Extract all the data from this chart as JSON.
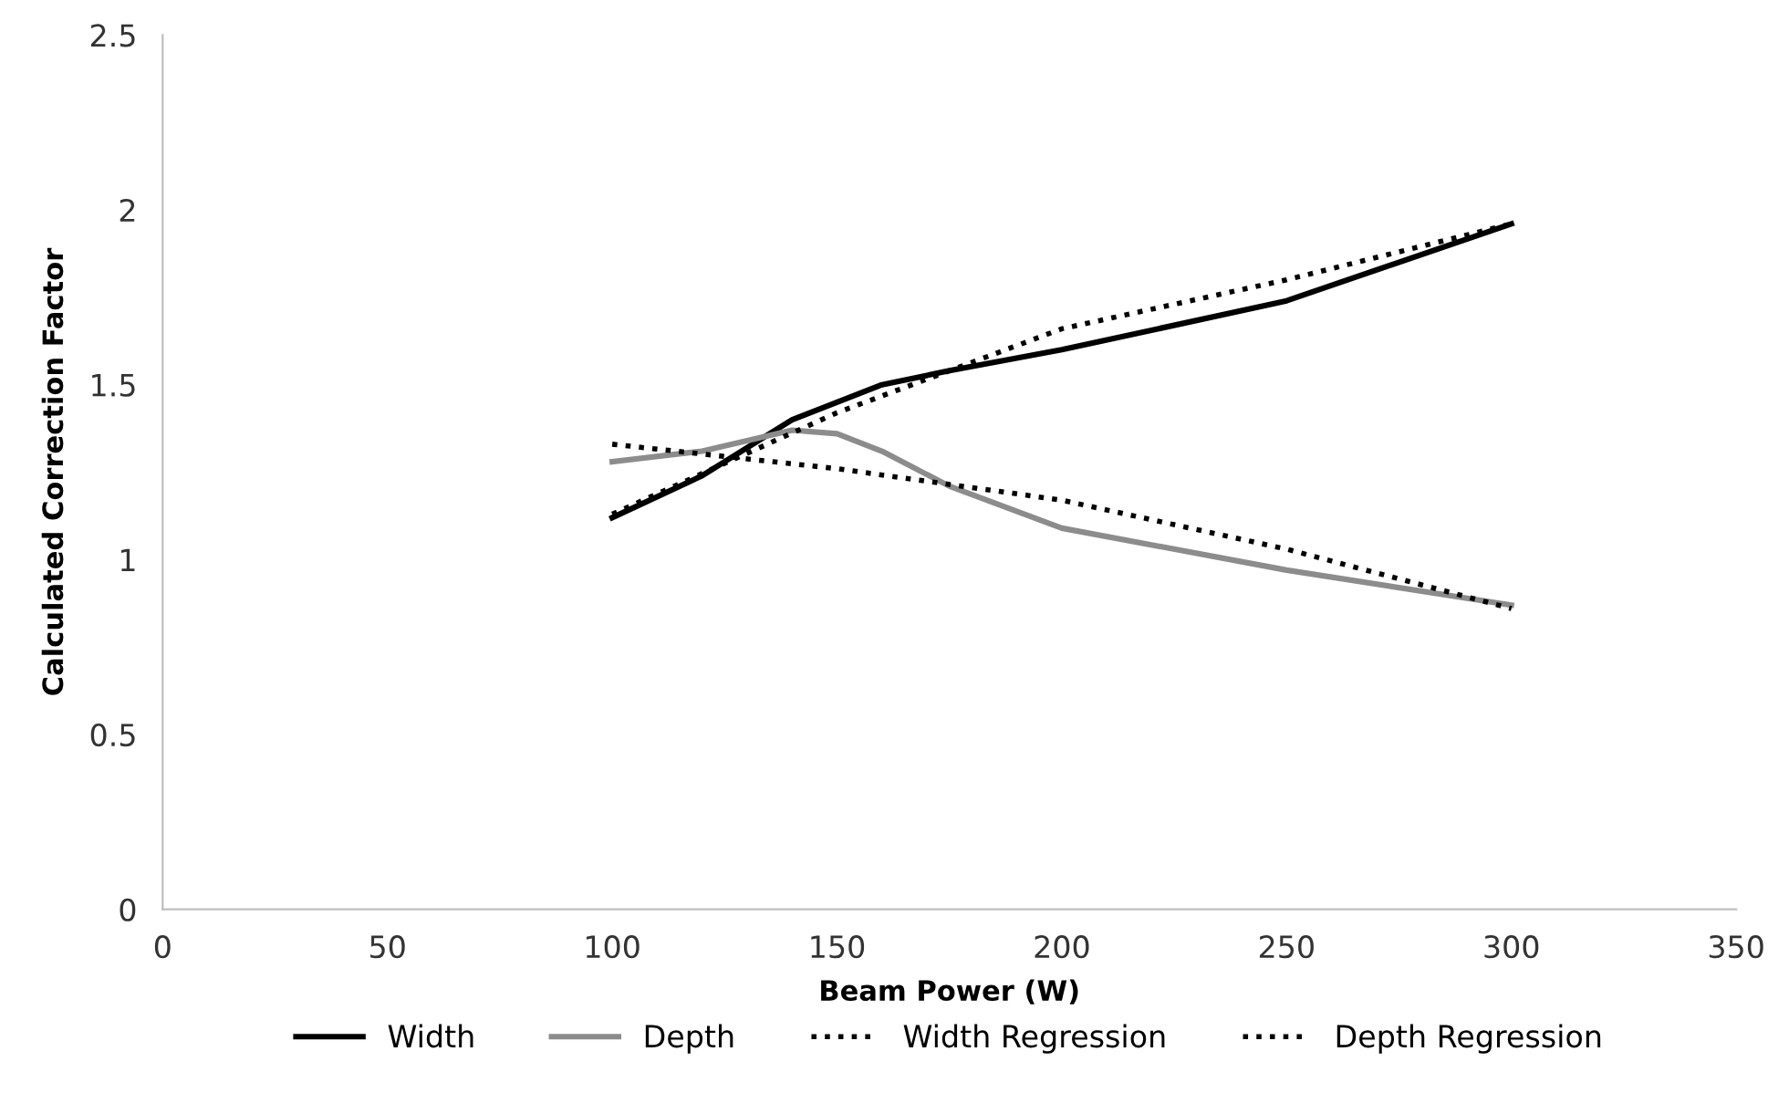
{
  "chart_data": {
    "type": "line",
    "xlabel": "Beam Power (W)",
    "ylabel": "Calculated Correction Factor",
    "xlim": [
      0,
      350
    ],
    "xticks": [
      0,
      50,
      100,
      150,
      200,
      250,
      300,
      350
    ],
    "ylim": [
      0,
      2.5
    ],
    "yticks": [
      0,
      0.5,
      1,
      1.5,
      2,
      2.5
    ],
    "grid": false,
    "legend": "bottom",
    "marker": "none",
    "series": [
      {
        "name": "Width",
        "color": "#000000",
        "line_style": "solid",
        "x": [
          100,
          120,
          140,
          150,
          160,
          175,
          200,
          250,
          300
        ],
        "values": [
          1.12,
          1.24,
          1.4,
          1.45,
          1.5,
          1.54,
          1.6,
          1.74,
          1.96
        ]
      },
      {
        "name": "Depth",
        "color": "#8c8c8c",
        "line_style": "solid",
        "x": [
          100,
          120,
          140,
          150,
          160,
          175,
          200,
          250,
          300
        ],
        "values": [
          1.28,
          1.31,
          1.37,
          1.36,
          1.31,
          1.21,
          1.09,
          0.97,
          0.87
        ]
      },
      {
        "name": "Width Regression",
        "color": "#000000",
        "line_style": "dotted",
        "x": [
          100,
          150,
          200,
          250,
          300
        ],
        "values": [
          1.13,
          1.42,
          1.66,
          1.8,
          1.96
        ]
      },
      {
        "name": "Depth Regression",
        "color": "#000000",
        "line_style": "dotted",
        "x": [
          100,
          150,
          200,
          250,
          300
        ],
        "values": [
          1.33,
          1.26,
          1.17,
          1.03,
          0.86
        ]
      }
    ]
  }
}
